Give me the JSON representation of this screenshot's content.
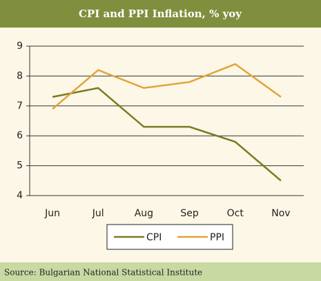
{
  "chart_data": {
    "type": "line",
    "title": "CPI and PPI Inflation, % yoy",
    "categories": [
      "Jun",
      "Jul",
      "Aug",
      "Sep",
      "Oct",
      "Nov"
    ],
    "series": [
      {
        "name": "CPI",
        "color": "#7b7a22",
        "values": [
          7.3,
          7.6,
          6.3,
          6.3,
          5.8,
          4.5
        ]
      },
      {
        "name": "PPI",
        "color": "#e2a33a",
        "values": [
          6.9,
          8.2,
          7.6,
          7.8,
          8.4,
          7.3
        ]
      }
    ],
    "ylim": [
      4,
      9
    ],
    "yticks": [
      4,
      5,
      6,
      7,
      8,
      9
    ],
    "grid": true,
    "source": "Source: Bulgarian National Statistical Institute"
  }
}
